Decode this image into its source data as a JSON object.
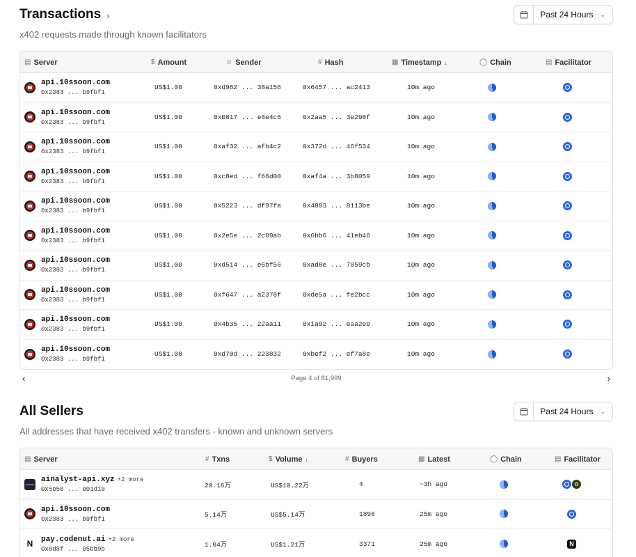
{
  "transactions": {
    "title": "Transactions",
    "title_chevron": "›",
    "subtitle": "x402 requests made through known facilitators",
    "range": "Past 24 Hours",
    "columns": {
      "server": "Server",
      "amount": "Amount",
      "sender": "Sender",
      "hash": "Hash",
      "timestamp": "Timestamp",
      "chain": "Chain",
      "facilitator": "Facilitator"
    },
    "rows": [
      {
        "server": "api.10ssoon.com",
        "address": "0x2383 ... b9fbf1",
        "amount": "US$1.00",
        "sender": "0xd962 ... 38a156",
        "hash": "0x6457 ... ac2413",
        "time": "10m ago"
      },
      {
        "server": "api.10ssoon.com",
        "address": "0x2383 ... b9fbf1",
        "amount": "US$1.00",
        "sender": "0x0817 ... e6e4c6",
        "hash": "0x2aa5 ... 3e298f",
        "time": "10m ago"
      },
      {
        "server": "api.10ssoon.com",
        "address": "0x2383 ... b9fbf1",
        "amount": "US$1.00",
        "sender": "0xaf32 ... afb4c2",
        "hash": "0x372d ... 46f534",
        "time": "10m ago"
      },
      {
        "server": "api.10ssoon.com",
        "address": "0x2383 ... b9fbf1",
        "amount": "US$1.00",
        "sender": "0xc8ed ... f66d00",
        "hash": "0xaf4a ... 3b8059",
        "time": "10m ago"
      },
      {
        "server": "api.10ssoon.com",
        "address": "0x2383 ... b9fbf1",
        "amount": "US$1.00",
        "sender": "0x5223 ... df97fa",
        "hash": "0x4893 ... 8113be",
        "time": "10m ago"
      },
      {
        "server": "api.10ssoon.com",
        "address": "0x2383 ... b9fbf1",
        "amount": "US$1.00",
        "sender": "0x2e5e ... 2c09ab",
        "hash": "0x6bb6 ... 41eb46",
        "time": "10m ago"
      },
      {
        "server": "api.10ssoon.com",
        "address": "0x2383 ... b9fbf1",
        "amount": "US$1.00",
        "sender": "0xd514 ... e6bf56",
        "hash": "0xad8e ... 7059cb",
        "time": "10m ago"
      },
      {
        "server": "api.10ssoon.com",
        "address": "0x2383 ... b9fbf1",
        "amount": "US$1.00",
        "sender": "0xf647 ... a2378f",
        "hash": "0xde5a ... fe2bcc",
        "time": "10m ago"
      },
      {
        "server": "api.10ssoon.com",
        "address": "0x2383 ... b9fbf1",
        "amount": "US$1.00",
        "sender": "0x4b35 ... 22aa11",
        "hash": "0x1a92 ... eaa2e9",
        "time": "10m ago"
      },
      {
        "server": "api.10ssoon.com",
        "address": "0x2383 ... b9fbf1",
        "amount": "US$1.00",
        "sender": "0xd70d ... 223832",
        "hash": "0xbef2 ... ef7a8e",
        "time": "10m ago"
      }
    ],
    "pagination": {
      "label": "Page 4 of 81,999",
      "prev": "‹",
      "next": "›"
    }
  },
  "sellers": {
    "title": "All Sellers",
    "subtitle": "All addresses that have received x402 transfers - known and unknown servers",
    "range": "Past 24 Hours",
    "columns": {
      "server": "Server",
      "txns": "Txns",
      "volume": "Volume",
      "buyers": "Buyers",
      "latest": "Latest",
      "chain": "Chain",
      "facilitator": "Facilitator"
    },
    "rows": [
      {
        "server": "ainalyst-api.xyz",
        "more": "+2 more",
        "address": "0x5e50 ... e01d10",
        "txns": "20.16万",
        "volume": "US$10.22万",
        "buyers": "4",
        "latest": "~3h ago",
        "avatar": "dark",
        "facilitator": "double"
      },
      {
        "server": "api.10ssoon.com",
        "more": "",
        "address": "0x2383 ... b9fbf1",
        "txns": "5.14万",
        "volume": "US$5.14万",
        "buyers": "1898",
        "latest": "25m ago",
        "avatar": "red",
        "facilitator": "blue"
      },
      {
        "server": "pay.codenut.ai",
        "more": "+2 more",
        "address": "0x8d8f ... 05bb9b",
        "txns": "1.04万",
        "volume": "US$1.21万",
        "buyers": "3371",
        "latest": "25m ago",
        "avatar": "n",
        "facilitator": "n",
        "avatar_letter": "N"
      }
    ]
  },
  "icons": {
    "calendar": "calendar-icon",
    "server": "server-icon",
    "dollar": "dollar-icon",
    "user": "user-icon",
    "hash": "hash-icon",
    "clock": "calendar-icon",
    "globe": "globe-icon",
    "sort": "arrow-down-icon"
  },
  "colors": {
    "chain_blue": "#1c5bd6",
    "facilitator_blue": "#2b66e0",
    "header_bg": "#f6f6f6",
    "border": "#e2e2e2"
  }
}
